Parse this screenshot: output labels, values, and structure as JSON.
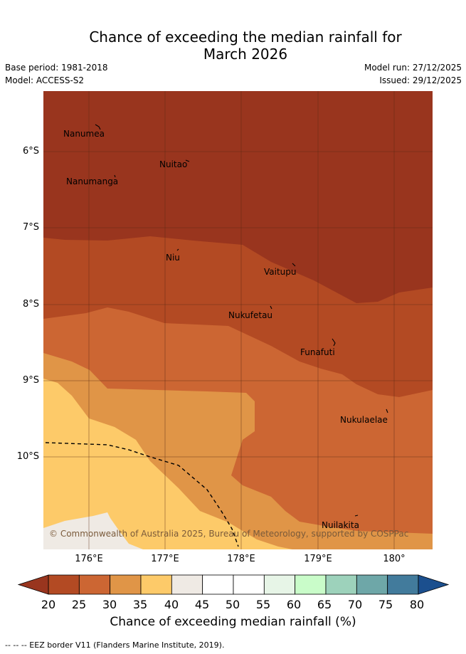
{
  "title_line1": "Chance of exceeding the median rainfall for",
  "title_line2": "March 2026",
  "meta": {
    "base_period": "Base period: 1981-2018",
    "model": "Model: ACCESS-S2",
    "model_run": "Model run: 27/12/2025",
    "issued": "Issued: 29/12/2025"
  },
  "places": [
    {
      "name": "Nanumea"
    },
    {
      "name": "Nuitao"
    },
    {
      "name": "Nanumanga"
    },
    {
      "name": "Niu"
    },
    {
      "name": "Vaitupu"
    },
    {
      "name": "Nukufetau"
    },
    {
      "name": "Funafuti"
    },
    {
      "name": "Nukulaelae"
    },
    {
      "name": "Nuilakita"
    }
  ],
  "lat_labels": [
    "6°S",
    "7°S",
    "8°S",
    "9°S",
    "10°S"
  ],
  "lon_labels": [
    "176°E",
    "177°E",
    "178°E",
    "179°E",
    "180°"
  ],
  "copyright": "© Commonwealth of Australia 2025, Bureau of Meteorology, supported by COSPPac",
  "colorbar": {
    "ticks": [
      "20",
      "25",
      "30",
      "35",
      "40",
      "45",
      "50",
      "55",
      "60",
      "65",
      "70",
      "75",
      "80"
    ],
    "colors": [
      "#b34a23",
      "#cc6633",
      "#e09547",
      "#fdca69",
      "#efeae4",
      "#ffffff",
      "#ffffff",
      "#e7f5e7",
      "#c9fcc9",
      "#9dd2bb",
      "#6ea7a8",
      "#427b9c"
    ],
    "under_color": "#99351e",
    "over_color": "#1b4f8e",
    "label": "Chance of exceeding median rainfall (%)"
  },
  "footer": "-- -- -- EEZ border V11 (Flanders Marine Institute, 2019)."
}
